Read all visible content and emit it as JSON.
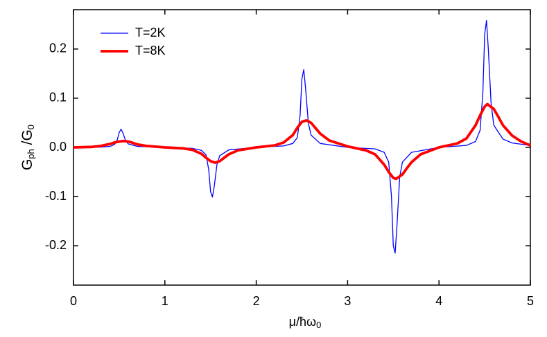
{
  "chart_data": {
    "type": "line",
    "ylabel_parts": [
      "G",
      "ph",
      " /G",
      "0"
    ],
    "xlabel_parts": [
      "μ/ħω",
      "0"
    ],
    "xlim": [
      0,
      5
    ],
    "xticks": [
      0,
      1,
      2,
      3,
      4,
      5
    ],
    "ylim": [
      -0.28,
      0.28
    ],
    "yticks": [
      -0.2,
      -0.1,
      {
        "value": 0,
        "label": "0.0"
      },
      0.1,
      0.2
    ],
    "legend": "top-left",
    "series": [
      {
        "name": "T=2K",
        "color": "#0000ff",
        "x": [
          0,
          0.3,
          0.4,
          0.45,
          0.48,
          0.5,
          0.52,
          0.54,
          0.57,
          0.6,
          0.7,
          1.0,
          1.3,
          1.4,
          1.45,
          1.48,
          1.5,
          1.52,
          1.54,
          1.57,
          1.6,
          1.7,
          2.0,
          2.3,
          2.4,
          2.45,
          2.48,
          2.5,
          2.52,
          2.54,
          2.57,
          2.6,
          2.7,
          3.0,
          3.3,
          3.4,
          3.45,
          3.48,
          3.5,
          3.52,
          3.54,
          3.57,
          3.6,
          3.7,
          4.0,
          4.3,
          4.4,
          4.45,
          4.48,
          4.5,
          4.52,
          4.54,
          4.57,
          4.6,
          4.7,
          4.8,
          5.0
        ],
        "values": [
          0,
          0.0005,
          0.002,
          0.006,
          0.016,
          0.03,
          0.037,
          0.03,
          0.014,
          0.007,
          0.002,
          0,
          -0.002,
          -0.006,
          -0.015,
          -0.045,
          -0.09,
          -0.101,
          -0.08,
          -0.035,
          -0.017,
          -0.005,
          0,
          0.003,
          0.008,
          0.02,
          0.065,
          0.14,
          0.158,
          0.12,
          0.05,
          0.025,
          0.008,
          0,
          -0.003,
          -0.01,
          -0.03,
          -0.1,
          -0.2,
          -0.215,
          -0.16,
          -0.06,
          -0.03,
          -0.01,
          0,
          0.004,
          0.012,
          0.035,
          0.11,
          0.23,
          0.258,
          0.2,
          0.09,
          0.045,
          0.017,
          0.009,
          0.004
        ]
      },
      {
        "name": "T=8K",
        "color": "#ff0000",
        "x": [
          0,
          0.2,
          0.3,
          0.4,
          0.45,
          0.5,
          0.55,
          0.6,
          0.65,
          0.7,
          0.8,
          1.0,
          1.2,
          1.3,
          1.4,
          1.45,
          1.5,
          1.55,
          1.6,
          1.65,
          1.7,
          1.8,
          2.0,
          2.2,
          2.3,
          2.4,
          2.45,
          2.5,
          2.55,
          2.6,
          2.65,
          2.7,
          2.8,
          3.0,
          3.2,
          3.3,
          3.4,
          3.45,
          3.5,
          3.53,
          3.6,
          3.65,
          3.7,
          3.8,
          4.0,
          4.2,
          4.3,
          4.4,
          4.45,
          4.5,
          4.53,
          4.6,
          4.65,
          4.7,
          4.8,
          4.9,
          5.0
        ],
        "values": [
          0,
          0.001,
          0.003,
          0.007,
          0.01,
          0.012,
          0.013,
          0.012,
          0.009,
          0.006,
          0.003,
          0,
          -0.002,
          -0.005,
          -0.013,
          -0.021,
          -0.028,
          -0.031,
          -0.028,
          -0.021,
          -0.014,
          -0.006,
          0,
          0.004,
          0.01,
          0.025,
          0.04,
          0.052,
          0.055,
          0.05,
          0.039,
          0.028,
          0.014,
          0.002,
          -0.006,
          -0.014,
          -0.035,
          -0.05,
          -0.062,
          -0.064,
          -0.055,
          -0.042,
          -0.03,
          -0.014,
          0,
          0.008,
          0.018,
          0.045,
          0.065,
          0.083,
          0.088,
          0.078,
          0.062,
          0.045,
          0.024,
          0.012,
          0.004
        ]
      }
    ]
  }
}
